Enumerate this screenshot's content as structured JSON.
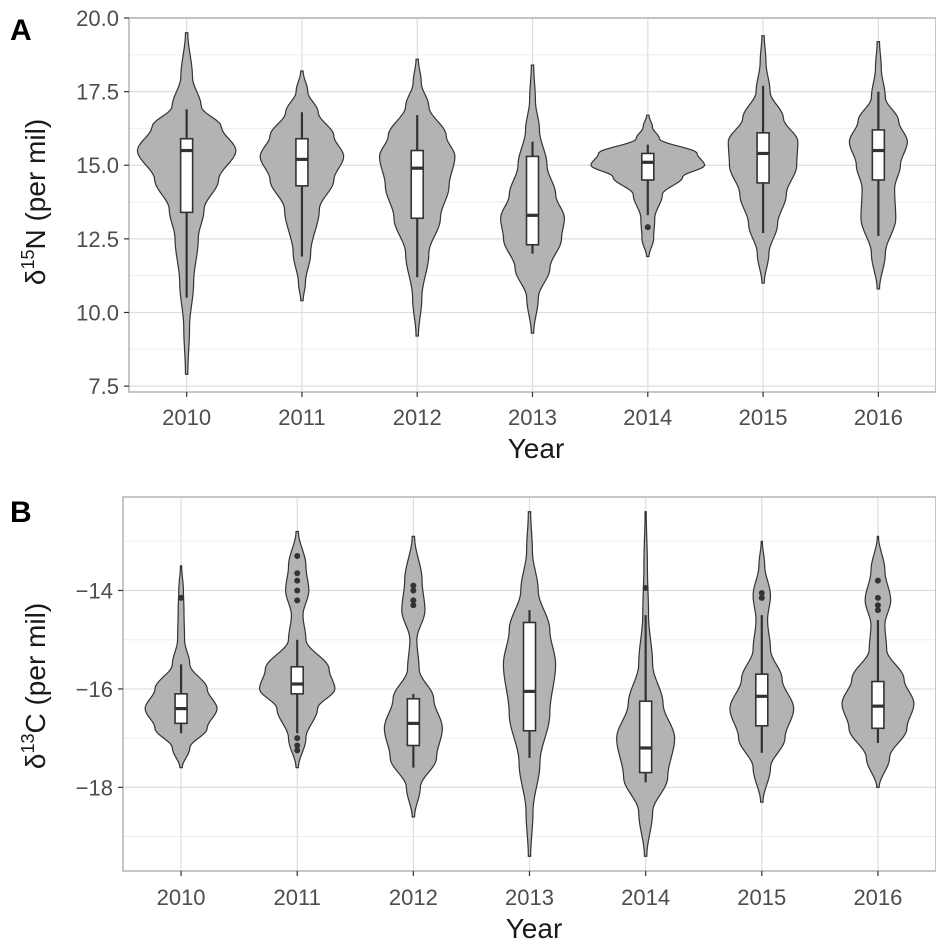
{
  "colors": {
    "violin_fill": "#b3b3b3",
    "violin_stroke": "#333333",
    "box_fill": "#ffffff",
    "grid_major": "#dedede",
    "grid_minor": "#ededed",
    "panel_border": "#b3b3b3",
    "outlier": "#333333"
  },
  "chart_data": [
    {
      "panel": "A",
      "type": "violin",
      "xlabel": "Year",
      "ylabel_prefix": "δ",
      "ylabel_sup": "15",
      "ylabel_suffix": "N (per mil)",
      "categories": [
        "2010",
        "2011",
        "2012",
        "2013",
        "2014",
        "2015",
        "2016"
      ],
      "ylim": [
        7.3,
        20.0
      ],
      "yticks": [
        7.5,
        10.0,
        12.5,
        15.0,
        17.5,
        20.0
      ],
      "ytick_labels": [
        "7.5",
        "10.0",
        "12.5",
        "15.0",
        "17.5",
        "20.0"
      ],
      "grid": true,
      "groups": [
        {
          "year": "2010",
          "violin_min": 7.9,
          "violin_max": 19.5,
          "density": [
            [
              7.9,
              0.02
            ],
            [
              9.5,
              0.05
            ],
            [
              11,
              0.12
            ],
            [
              12.5,
              0.2
            ],
            [
              13.5,
              0.3
            ],
            [
              14.5,
              0.55
            ],
            [
              15.5,
              0.85
            ],
            [
              16.3,
              0.6
            ],
            [
              17,
              0.25
            ],
            [
              18,
              0.1
            ],
            [
              19.5,
              0.02
            ]
          ],
          "box": {
            "q1": 13.4,
            "median": 15.5,
            "q3": 15.9
          },
          "whisker": [
            10.5,
            16.9
          ],
          "outliers": []
        },
        {
          "year": "2011",
          "violin_min": 10.4,
          "violin_max": 18.2,
          "density": [
            [
              10.4,
              0.02
            ],
            [
              11,
              0.06
            ],
            [
              12,
              0.15
            ],
            [
              13.5,
              0.3
            ],
            [
              14.5,
              0.55
            ],
            [
              15.3,
              0.72
            ],
            [
              16,
              0.55
            ],
            [
              16.8,
              0.28
            ],
            [
              17.5,
              0.1
            ],
            [
              18.2,
              0.02
            ]
          ],
          "box": {
            "q1": 14.3,
            "median": 15.2,
            "q3": 15.9
          },
          "whisker": [
            11.9,
            16.8
          ],
          "outliers": []
        },
        {
          "year": "2012",
          "violin_min": 9.2,
          "violin_max": 18.6,
          "density": [
            [
              9.2,
              0.02
            ],
            [
              10.5,
              0.08
            ],
            [
              12,
              0.2
            ],
            [
              13.2,
              0.4
            ],
            [
              14.3,
              0.55
            ],
            [
              15.3,
              0.65
            ],
            [
              16,
              0.5
            ],
            [
              17,
              0.2
            ],
            [
              17.8,
              0.07
            ],
            [
              18.6,
              0.02
            ]
          ],
          "box": {
            "q1": 13.2,
            "median": 14.9,
            "q3": 15.5
          },
          "whisker": [
            11.2,
            16.7
          ],
          "outliers": []
        },
        {
          "year": "2013",
          "violin_min": 9.3,
          "violin_max": 18.4,
          "density": [
            [
              9.3,
              0.02
            ],
            [
              10.5,
              0.1
            ],
            [
              11.5,
              0.3
            ],
            [
              12.5,
              0.5
            ],
            [
              13.2,
              0.55
            ],
            [
              14,
              0.4
            ],
            [
              15,
              0.25
            ],
            [
              16.2,
              0.12
            ],
            [
              17.2,
              0.05
            ],
            [
              18.4,
              0.02
            ]
          ],
          "box": {
            "q1": 12.3,
            "median": 13.3,
            "q3": 15.3
          },
          "whisker": [
            12.0,
            15.8
          ],
          "outliers": []
        },
        {
          "year": "2014",
          "violin_min": 11.9,
          "violin_max": 16.7,
          "density": [
            [
              11.9,
              0.02
            ],
            [
              12.5,
              0.1
            ],
            [
              13.2,
              0.12
            ],
            [
              14,
              0.25
            ],
            [
              14.6,
              0.6
            ],
            [
              15,
              0.98
            ],
            [
              15.4,
              0.85
            ],
            [
              15.9,
              0.2
            ],
            [
              16.3,
              0.08
            ],
            [
              16.7,
              0.02
            ]
          ],
          "box": {
            "q1": 14.5,
            "median": 15.1,
            "q3": 15.4
          },
          "whisker": [
            13.3,
            15.7
          ],
          "outliers": [
            12.9
          ]
        },
        {
          "year": "2015",
          "violin_min": 11.0,
          "violin_max": 19.4,
          "density": [
            [
              11,
              0.02
            ],
            [
              12,
              0.1
            ],
            [
              13,
              0.25
            ],
            [
              14,
              0.4
            ],
            [
              15,
              0.58
            ],
            [
              15.8,
              0.6
            ],
            [
              16.6,
              0.35
            ],
            [
              17.5,
              0.12
            ],
            [
              18.5,
              0.05
            ],
            [
              19.4,
              0.02
            ]
          ],
          "box": {
            "q1": 14.4,
            "median": 15.4,
            "q3": 16.1
          },
          "whisker": [
            12.7,
            17.7
          ],
          "outliers": []
        },
        {
          "year": "2016",
          "violin_min": 10.8,
          "violin_max": 19.2,
          "density": [
            [
              10.8,
              0.02
            ],
            [
              12,
              0.12
            ],
            [
              13.2,
              0.3
            ],
            [
              14.2,
              0.28
            ],
            [
              15,
              0.38
            ],
            [
              15.8,
              0.5
            ],
            [
              16.5,
              0.35
            ],
            [
              17.3,
              0.12
            ],
            [
              18.3,
              0.05
            ],
            [
              19.2,
              0.02
            ]
          ],
          "box": {
            "q1": 14.5,
            "median": 15.5,
            "q3": 16.2
          },
          "whisker": [
            12.6,
            17.5
          ],
          "outliers": []
        }
      ]
    },
    {
      "panel": "B",
      "type": "violin",
      "xlabel": "Year",
      "ylabel_prefix": "δ",
      "ylabel_sup": "13",
      "ylabel_suffix": "C (per mil)",
      "categories": [
        "2010",
        "2011",
        "2012",
        "2013",
        "2014",
        "2015",
        "2016"
      ],
      "ylim": [
        -19.7,
        -12.1
      ],
      "yticks": [
        -18,
        -16,
        -14
      ],
      "ytick_labels": [
        "−18",
        "−16",
        "−14"
      ],
      "grid": true,
      "groups": [
        {
          "year": "2010",
          "violin_min": -17.6,
          "violin_max": -13.5,
          "density": [
            [
              -17.6,
              0.02
            ],
            [
              -17.2,
              0.15
            ],
            [
              -16.8,
              0.45
            ],
            [
              -16.4,
              0.62
            ],
            [
              -16.0,
              0.45
            ],
            [
              -15.5,
              0.15
            ],
            [
              -15.0,
              0.06
            ],
            [
              -14.4,
              0.05
            ],
            [
              -14.0,
              0.04
            ],
            [
              -13.5,
              0.01
            ]
          ],
          "box": {
            "q1": -16.7,
            "median": -16.4,
            "q3": -16.1
          },
          "whisker": [
            -16.9,
            -15.5
          ],
          "outliers": [
            -14.15
          ]
        },
        {
          "year": "2011",
          "violin_min": -17.6,
          "violin_max": -12.8,
          "density": [
            [
              -17.6,
              0.02
            ],
            [
              -17.0,
              0.15
            ],
            [
              -16.4,
              0.35
            ],
            [
              -16.0,
              0.65
            ],
            [
              -15.6,
              0.55
            ],
            [
              -15.0,
              0.15
            ],
            [
              -14.5,
              0.1
            ],
            [
              -14.0,
              0.2
            ],
            [
              -13.5,
              0.15
            ],
            [
              -12.8,
              0.02
            ]
          ],
          "box": {
            "q1": -16.1,
            "median": -15.9,
            "q3": -15.55
          },
          "whisker": [
            -16.9,
            -15.0
          ],
          "outliers": [
            -14.2,
            -14.0,
            -13.8,
            -13.65,
            -13.3,
            -17.0,
            -17.15,
            -17.25
          ]
        },
        {
          "year": "2012",
          "violin_min": -18.6,
          "violin_max": -12.9,
          "density": [
            [
              -18.6,
              0.02
            ],
            [
              -18.0,
              0.12
            ],
            [
              -17.4,
              0.4
            ],
            [
              -16.8,
              0.5
            ],
            [
              -16.2,
              0.35
            ],
            [
              -15.6,
              0.1
            ],
            [
              -15.0,
              0.06
            ],
            [
              -14.4,
              0.2
            ],
            [
              -13.8,
              0.15
            ],
            [
              -12.9,
              0.02
            ]
          ],
          "box": {
            "q1": -17.15,
            "median": -16.7,
            "q3": -16.2
          },
          "whisker": [
            -17.6,
            -16.1
          ],
          "outliers": [
            -13.9,
            -14.0,
            -14.2,
            -14.3
          ]
        },
        {
          "year": "2013",
          "violin_min": -19.4,
          "violin_max": -12.4,
          "density": [
            [
              -19.4,
              0.02
            ],
            [
              -18.5,
              0.06
            ],
            [
              -17.5,
              0.18
            ],
            [
              -16.5,
              0.35
            ],
            [
              -15.5,
              0.45
            ],
            [
              -14.8,
              0.35
            ],
            [
              -14.0,
              0.15
            ],
            [
              -13.2,
              0.05
            ],
            [
              -12.4,
              0.02
            ]
          ],
          "box": {
            "q1": -16.85,
            "median": -16.05,
            "q3": -14.65
          },
          "whisker": [
            -17.4,
            -14.4
          ],
          "outliers": []
        },
        {
          "year": "2014",
          "violin_min": -19.4,
          "violin_max": -12.4,
          "density": [
            [
              -19.4,
              0.02
            ],
            [
              -18.5,
              0.12
            ],
            [
              -17.8,
              0.38
            ],
            [
              -17.0,
              0.5
            ],
            [
              -16.3,
              0.3
            ],
            [
              -15.5,
              0.12
            ],
            [
              -14.5,
              0.05
            ],
            [
              -13.5,
              0.03
            ],
            [
              -12.4,
              0.01
            ]
          ],
          "box": {
            "q1": -17.7,
            "median": -17.2,
            "q3": -16.25
          },
          "whisker": [
            -17.9,
            -14.5
          ],
          "outliers": [
            -13.95
          ]
        },
        {
          "year": "2015",
          "violin_min": -18.3,
          "violin_max": -13.0,
          "density": [
            [
              -18.3,
              0.02
            ],
            [
              -17.6,
              0.15
            ],
            [
              -17.0,
              0.4
            ],
            [
              -16.4,
              0.55
            ],
            [
              -15.8,
              0.35
            ],
            [
              -15.2,
              0.15
            ],
            [
              -14.6,
              0.1
            ],
            [
              -14.1,
              0.15
            ],
            [
              -13.5,
              0.05
            ],
            [
              -13.0,
              0.01
            ]
          ],
          "box": {
            "q1": -16.75,
            "median": -16.15,
            "q3": -15.7
          },
          "whisker": [
            -17.3,
            -14.5
          ],
          "outliers": [
            -14.05,
            -14.15
          ]
        },
        {
          "year": "2016",
          "violin_min": -18.0,
          "violin_max": -12.9,
          "density": [
            [
              -18.0,
              0.02
            ],
            [
              -17.4,
              0.2
            ],
            [
              -16.8,
              0.5
            ],
            [
              -16.3,
              0.62
            ],
            [
              -15.8,
              0.45
            ],
            [
              -15.2,
              0.15
            ],
            [
              -14.7,
              0.12
            ],
            [
              -14.2,
              0.22
            ],
            [
              -13.6,
              0.12
            ],
            [
              -12.9,
              0.01
            ]
          ],
          "box": {
            "q1": -16.8,
            "median": -16.35,
            "q3": -15.85
          },
          "whisker": [
            -17.1,
            -14.6
          ],
          "outliers": [
            -13.8,
            -14.15,
            -14.3,
            -14.4
          ]
        }
      ]
    }
  ]
}
